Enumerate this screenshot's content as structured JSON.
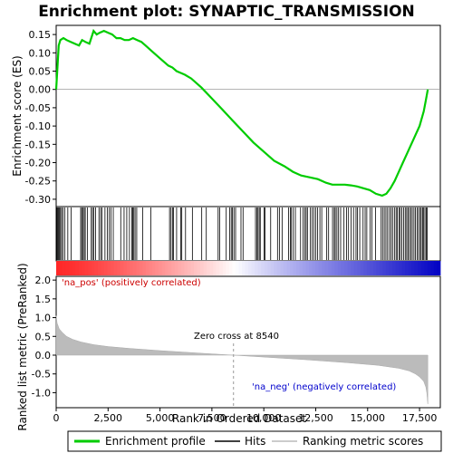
{
  "chart_data": {
    "type": "line",
    "title": "Enrichment plot: SYNAPTIC_TRANSMISSION",
    "top_panel": {
      "ylabel": "Enrichment score (ES)",
      "ylim": [
        -0.32,
        0.175
      ],
      "yticks": [
        0.15,
        0.1,
        0.05,
        0.0,
        -0.05,
        -0.1,
        -0.15,
        -0.2,
        -0.25,
        -0.3
      ],
      "ytick_labels": [
        "0.15",
        "0.10",
        "0.05",
        "0.00",
        "-0.05",
        "-0.10",
        "-0.15",
        "-0.20",
        "-0.25",
        "-0.30"
      ],
      "series": [
        {
          "name": "Enrichment profile",
          "color": "#00cc00",
          "x": [
            0,
            60,
            120,
            200,
            350,
            500,
            700,
            900,
            1100,
            1250,
            1400,
            1600,
            1800,
            1950,
            2100,
            2300,
            2500,
            2700,
            2900,
            3100,
            3300,
            3500,
            3700,
            3900,
            4100,
            4300,
            4600,
            5000,
            5400,
            5600,
            5800,
            6000,
            6200,
            6500,
            7000,
            7500,
            8000,
            8500,
            9000,
            9500,
            10000,
            10500,
            11000,
            11400,
            11800,
            12200,
            12600,
            13000,
            13300,
            13600,
            13900,
            14200,
            14500,
            14800,
            15100,
            15400,
            15700,
            15900,
            16100,
            16300,
            16500,
            16700,
            16900,
            17100,
            17300,
            17500,
            17700,
            17800,
            17850,
            17900
          ],
          "y": [
            0.0,
            0.06,
            0.12,
            0.135,
            0.14,
            0.135,
            0.13,
            0.125,
            0.12,
            0.135,
            0.13,
            0.125,
            0.16,
            0.15,
            0.155,
            0.16,
            0.155,
            0.15,
            0.14,
            0.14,
            0.135,
            0.135,
            0.14,
            0.135,
            0.13,
            0.12,
            0.105,
            0.085,
            0.065,
            0.06,
            0.05,
            0.045,
            0.04,
            0.03,
            0.005,
            -0.025,
            -0.055,
            -0.085,
            -0.115,
            -0.145,
            -0.17,
            -0.195,
            -0.21,
            -0.225,
            -0.235,
            -0.24,
            -0.245,
            -0.255,
            -0.26,
            -0.26,
            -0.26,
            -0.262,
            -0.265,
            -0.27,
            -0.275,
            -0.285,
            -0.29,
            -0.285,
            -0.27,
            -0.25,
            -0.225,
            -0.2,
            -0.175,
            -0.15,
            -0.125,
            -0.1,
            -0.06,
            -0.03,
            -0.015,
            0.0
          ]
        }
      ]
    },
    "hits_panel": {
      "series_name": "Hits"
    },
    "bottom_panel": {
      "ylabel": "Ranked list metric (PreRanked)",
      "xlabel": "Rank in Ordered Dataset",
      "ylim": [
        -1.4,
        2.1
      ],
      "yticks": [
        2.0,
        1.5,
        1.0,
        0.5,
        0.0,
        -0.5,
        -1.0
      ],
      "ytick_labels": [
        "2.0",
        "1.5",
        "1.0",
        "0.5",
        "0.0",
        "-0.5",
        "-1.0"
      ],
      "xlim": [
        0,
        18500
      ],
      "xticks": [
        0,
        2500,
        5000,
        7500,
        10000,
        12500,
        15000,
        17500
      ],
      "xtick_labels": [
        "0",
        "2,500",
        "5,000",
        "7,500",
        "10,000",
        "12,500",
        "15,000",
        "17,500"
      ],
      "series_name": "Ranking metric scores",
      "metric_x": [
        0,
        50,
        150,
        300,
        500,
        800,
        1200,
        1800,
        2500,
        3500,
        5000,
        7000,
        8540,
        10000,
        12000,
        14000,
        15500,
        16500,
        17000,
        17300,
        17500,
        17700,
        17800,
        17850,
        17900
      ],
      "metric_y": [
        1.05,
        0.85,
        0.7,
        0.6,
        0.5,
        0.42,
        0.35,
        0.28,
        0.23,
        0.18,
        0.12,
        0.05,
        0.0,
        -0.05,
        -0.12,
        -0.2,
        -0.27,
        -0.35,
        -0.42,
        -0.5,
        -0.58,
        -0.7,
        -0.85,
        -1.0,
        -1.3
      ]
    },
    "annotations": {
      "pos_label": "'na_pos' (positively correlated)",
      "neg_label": "'na_neg' (negatively correlated)",
      "zero_cross_label": "Zero cross at 8540",
      "zero_cross_x": 8540
    },
    "legend": {
      "position": "bottom",
      "entries": [
        {
          "label": "Enrichment profile",
          "color": "#00cc00",
          "kind": "line"
        },
        {
          "label": "Hits",
          "color": "#000000",
          "kind": "line"
        },
        {
          "label": "Ranking metric scores",
          "color": "#bbbbbb",
          "kind": "line"
        }
      ]
    },
    "hit_positions": [
      40,
      80,
      120,
      160,
      210,
      260,
      330,
      420,
      560,
      720,
      1180,
      1230,
      1290,
      1350,
      1400,
      1500,
      1690,
      1750,
      1810,
      1900,
      2060,
      2140,
      2200,
      2350,
      2470,
      2560,
      2640,
      2750,
      3110,
      3270,
      3400,
      3530,
      3640,
      3690,
      3740,
      3800,
      3880,
      4170,
      4560,
      5460,
      5530,
      5600,
      5650,
      5800,
      6000,
      6050,
      6230,
      6560,
      7010,
      7230,
      7800,
      7870,
      8190,
      8350,
      8430,
      8490,
      8560,
      8640,
      8900,
      9000,
      9600,
      9660,
      9720,
      9780,
      9830,
      10010,
      10060,
      10330,
      10660,
      10750,
      10880,
      11190,
      11280,
      11330,
      11420,
      11520,
      11770,
      11890,
      11970,
      12040,
      12100,
      12240,
      12330,
      12410,
      12500,
      12590,
      12700,
      12790,
      13030,
      13120,
      13310,
      13390,
      13440,
      13520,
      13600,
      13700,
      13860,
      13980,
      14080,
      14200,
      14320,
      14440,
      14510,
      14620,
      14780,
      14880,
      14960,
      15120,
      15210,
      15380,
      15650,
      15720,
      15800,
      15880,
      15960,
      16050,
      16130,
      16200,
      16290,
      16370,
      16430,
      16510,
      16570,
      16650,
      16730,
      16810,
      16880,
      16940,
      17010,
      17080,
      17150,
      17230,
      17300,
      17380,
      17450,
      17530,
      17580,
      17650,
      17700,
      17760,
      17820,
      17870
    ]
  }
}
